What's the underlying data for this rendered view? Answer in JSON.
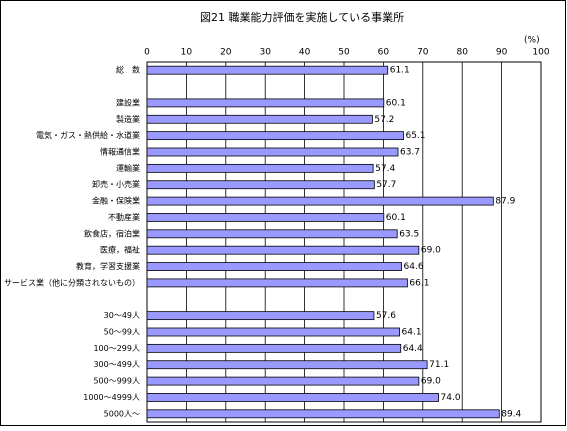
{
  "chart_data": {
    "type": "bar",
    "orientation": "horizontal",
    "title": "図21 職業能力評価を実施している事業所",
    "unit_label": "(%)",
    "categories": [
      "総　数",
      null,
      "建設業",
      "製造業",
      "電気・ガス・熱供給・水道業",
      "情報通信業",
      "運輸業",
      "卸売・小売業",
      "金融・保険業",
      "不動産業",
      "飲食店，宿泊業",
      "医療，福祉",
      "教育，学習支援業",
      "サービス業（他に分類されないもの）",
      null,
      "30～49人",
      "50～99人",
      "100～299人",
      "300～499人",
      "500～999人",
      "1000～4999人",
      "5000人～"
    ],
    "values": [
      61.1,
      null,
      60.1,
      57.2,
      65.1,
      63.7,
      57.4,
      57.7,
      87.9,
      60.1,
      63.5,
      69,
      64.6,
      66.1,
      null,
      57.6,
      64.1,
      64.4,
      71.1,
      69,
      74,
      89.4
    ],
    "value_labels": [
      "61.1",
      null,
      "60.1",
      "57.2",
      "65.1",
      "63.7",
      "57.4",
      "57.7",
      "87.9",
      "60.1",
      "63.5",
      "69.0",
      "64.6",
      "66.1",
      null,
      "57.6",
      "64.1",
      "64.4",
      "71.1",
      "69.0",
      "74.0",
      "89.4"
    ],
    "color": "#9999ff",
    "xlim": [
      0,
      100
    ],
    "xticks": [
      0,
      10,
      20,
      30,
      40,
      50,
      60,
      70,
      80,
      90,
      100
    ],
    "grid": true
  }
}
